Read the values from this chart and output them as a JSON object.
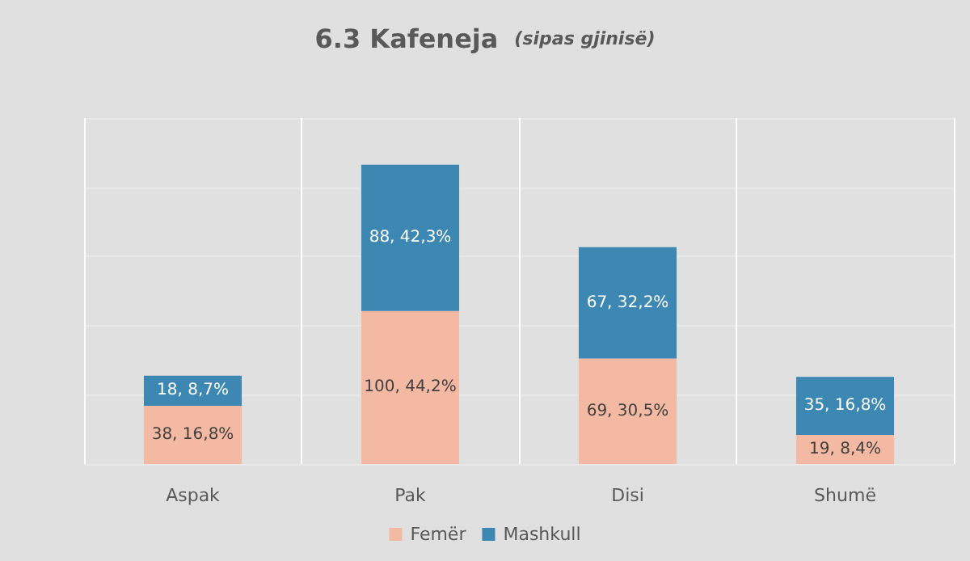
{
  "chart_data": {
    "type": "bar",
    "title": "6.3 Kafeneja",
    "subtitle": "(sipas gjinisë)",
    "stacked": true,
    "categories": [
      "Aspak",
      "Pak",
      "Disi",
      "Shumë"
    ],
    "series": [
      {
        "name": "Femër",
        "color": "#f4b9a3",
        "values": [
          16.8,
          44.2,
          30.5,
          8.4
        ],
        "value_labels": [
          "38, 16,8%",
          "100, 44,2%",
          "69, 30,5%",
          "19, 8,4%"
        ]
      },
      {
        "name": "Mashkull",
        "color": "#3d87b3",
        "values": [
          8.7,
          42.3,
          32.2,
          16.8
        ],
        "value_labels": [
          "18, 8,7%",
          "88, 42,3%",
          "67, 32,2%",
          "35, 16,8%"
        ]
      }
    ],
    "ylim": [
      0,
      100
    ],
    "yticks": [
      {
        "value": 0,
        "label": null
      },
      {
        "value": 20,
        "label": null
      },
      {
        "value": 40,
        "label": null
      },
      {
        "value": 60,
        "label": null
      },
      {
        "value": 80,
        "label": null
      },
      {
        "value": 100,
        "label": null
      }
    ],
    "tick_labels": "x",
    "grid": true,
    "legend": "bottom"
  }
}
